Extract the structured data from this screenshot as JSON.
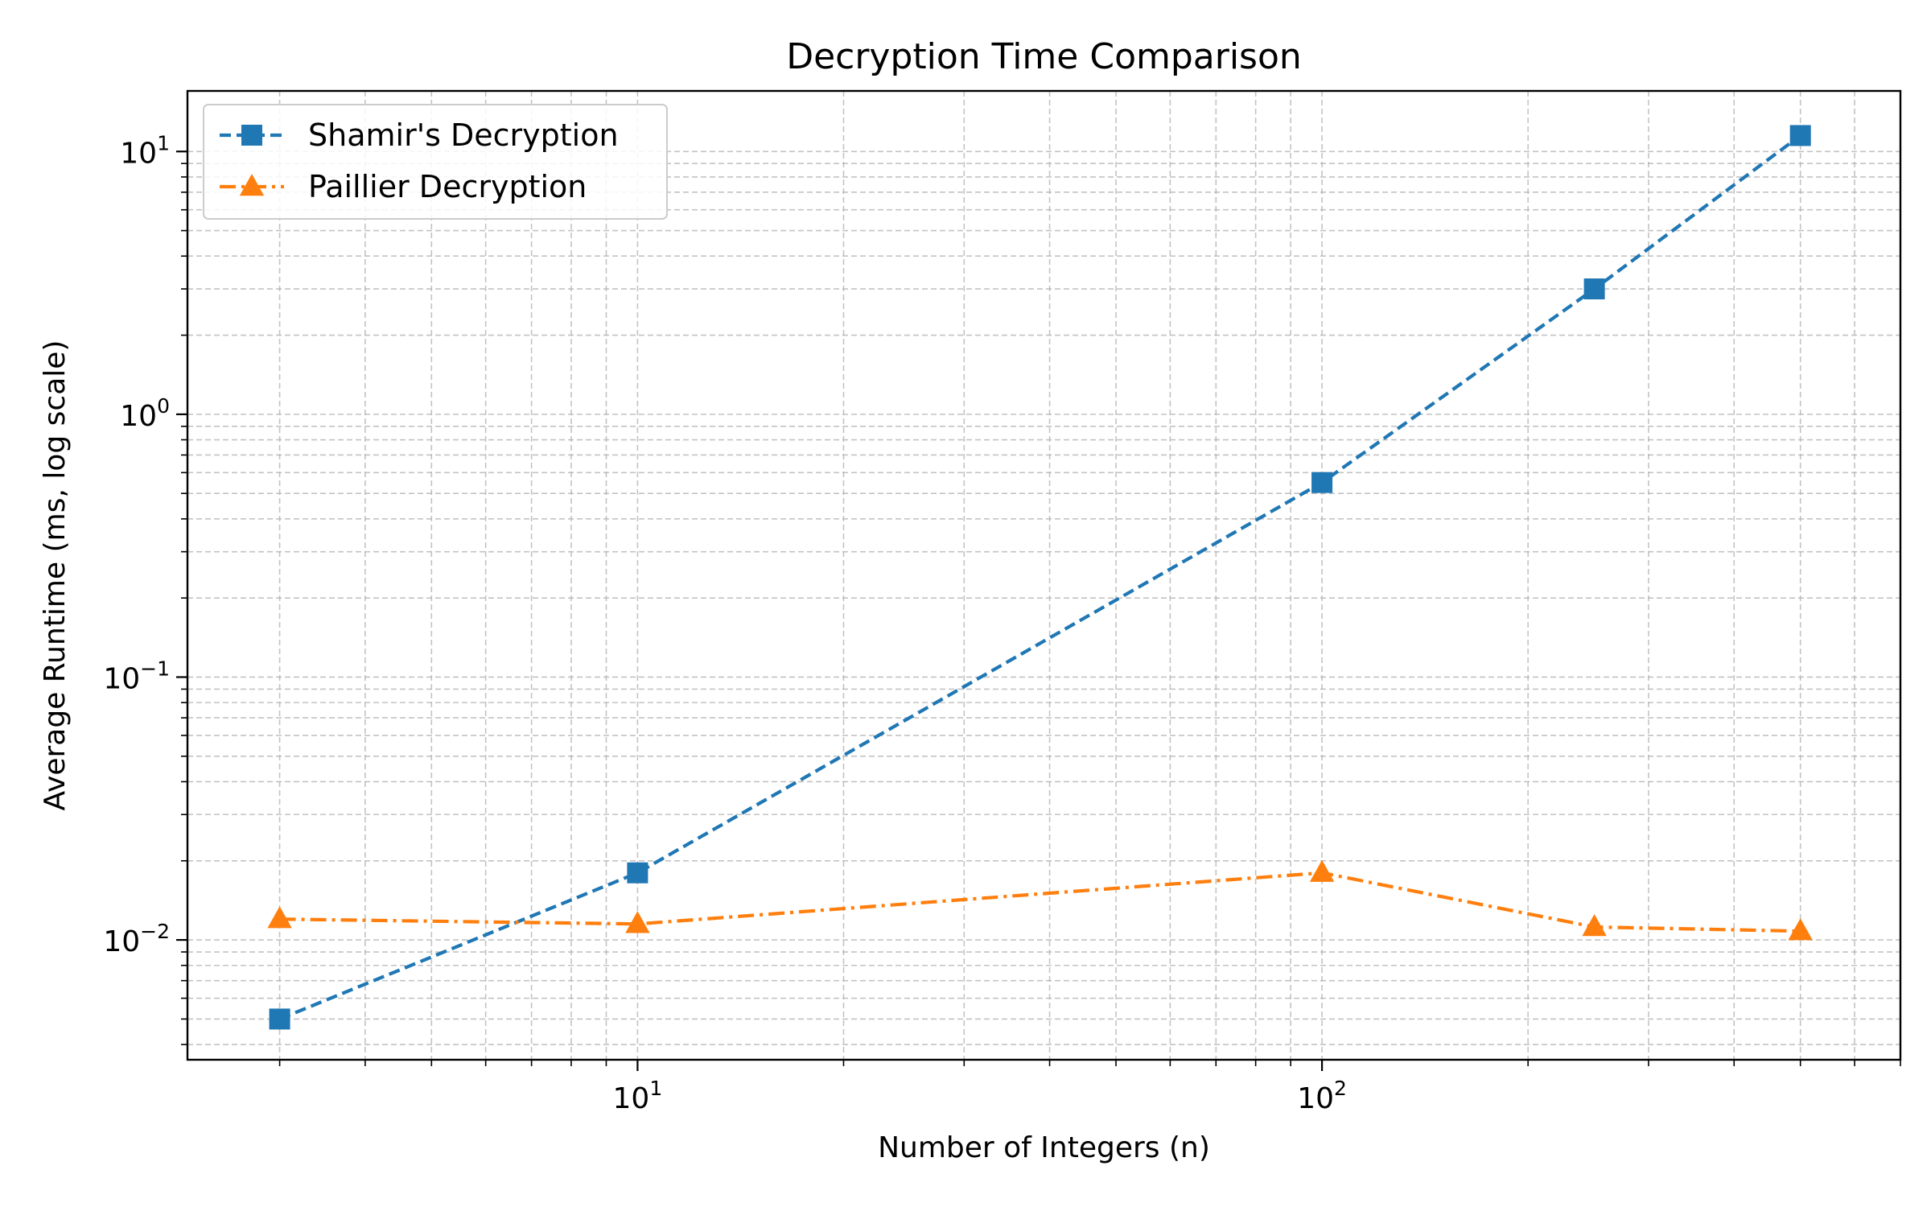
{
  "chart_data": {
    "type": "line",
    "title": "Decryption Time Comparison",
    "xlabel": "Number of Integers (n)",
    "ylabel": "Average Runtime (ms, log scale)",
    "xscale": "log",
    "yscale": "log",
    "xlim": [
      2.2,
      700
    ],
    "ylim": [
      0.0035,
      17
    ],
    "grid": "both (major and minor), dashed",
    "legend_position": "top-left",
    "x_major_ticks": [
      {
        "value": 10,
        "base": "10",
        "exp": "1"
      },
      {
        "value": 100,
        "base": "10",
        "exp": "2"
      }
    ],
    "y_major_ticks": [
      {
        "value": 0.01,
        "base": "10",
        "exp": "−2"
      },
      {
        "value": 0.1,
        "base": "10",
        "exp": "−1"
      },
      {
        "value": 1,
        "base": "10",
        "exp": "0"
      },
      {
        "value": 10,
        "base": "10",
        "exp": "1"
      }
    ],
    "series": [
      {
        "name": "Shamir's Decryption",
        "color": "#1f77b4",
        "line_style": "dashed",
        "marker": "square",
        "x": [
          3,
          10,
          100,
          250,
          500
        ],
        "y": [
          0.005,
          0.018,
          0.55,
          3.0,
          11.5
        ]
      },
      {
        "name": "Paillier Decryption",
        "color": "#ff7f0e",
        "line_style": "dash-dot",
        "marker": "triangle",
        "x": [
          3,
          10,
          100,
          250,
          500
        ],
        "y": [
          0.012,
          0.0115,
          0.018,
          0.0112,
          0.0108
        ]
      }
    ]
  }
}
